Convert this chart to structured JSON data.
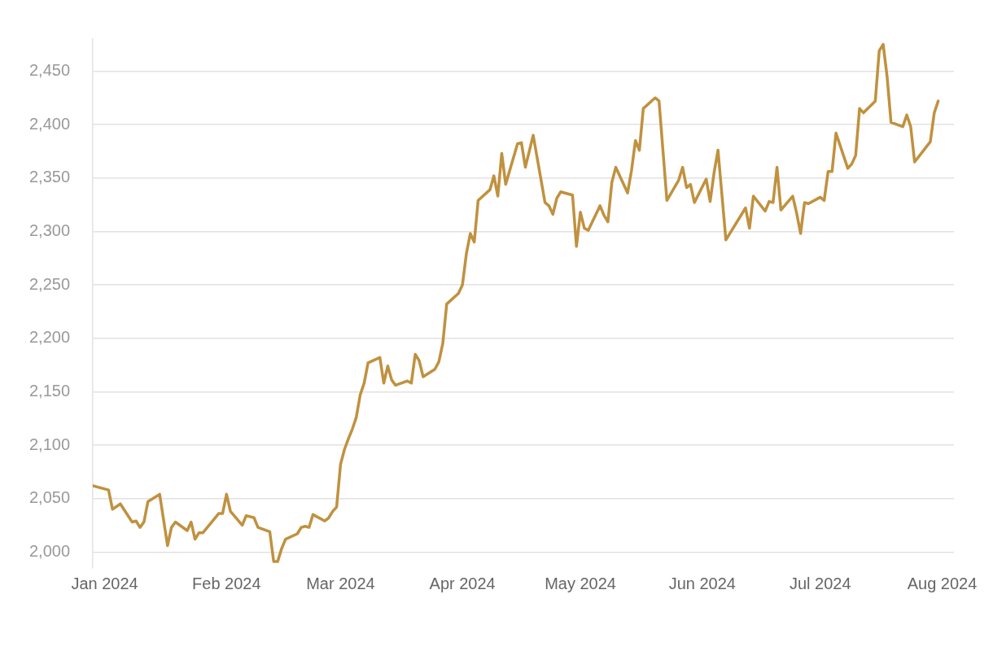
{
  "chart_data": {
    "type": "line",
    "x": [
      "2023-12-29",
      "2024-01-02",
      "2024-01-03",
      "2024-01-05",
      "2024-01-08",
      "2024-01-09",
      "2024-01-10",
      "2024-01-11",
      "2024-01-12",
      "2024-01-15",
      "2024-01-17",
      "2024-01-18",
      "2024-01-19",
      "2024-01-22",
      "2024-01-23",
      "2024-01-24",
      "2024-01-25",
      "2024-01-26",
      "2024-01-30",
      "2024-01-31",
      "2024-02-01",
      "2024-02-02",
      "2024-02-05",
      "2024-02-06",
      "2024-02-08",
      "2024-02-09",
      "2024-02-12",
      "2024-02-13",
      "2024-02-14",
      "2024-02-15",
      "2024-02-16",
      "2024-02-19",
      "2024-02-20",
      "2024-02-21",
      "2024-02-22",
      "2024-02-23",
      "2024-02-26",
      "2024-02-27",
      "2024-02-28",
      "2024-02-29",
      "2024-03-01",
      "2024-03-02",
      "2024-03-03",
      "2024-03-04",
      "2024-03-05",
      "2024-03-06",
      "2024-03-07",
      "2024-03-08",
      "2024-03-11",
      "2024-03-12",
      "2024-03-13",
      "2024-03-14",
      "2024-03-15",
      "2024-03-18",
      "2024-03-19",
      "2024-03-20",
      "2024-03-21",
      "2024-03-22",
      "2024-03-25",
      "2024-03-26",
      "2024-03-27",
      "2024-03-28",
      "2024-03-31",
      "2024-04-01",
      "2024-04-02",
      "2024-04-03",
      "2024-04-04",
      "2024-04-05",
      "2024-04-08",
      "2024-04-09",
      "2024-04-10",
      "2024-04-11",
      "2024-04-12",
      "2024-04-15",
      "2024-04-16",
      "2024-04-17",
      "2024-04-19",
      "2024-04-22",
      "2024-04-23",
      "2024-04-24",
      "2024-04-25",
      "2024-04-26",
      "2024-04-29",
      "2024-04-30",
      "2024-05-01",
      "2024-05-02",
      "2024-05-03",
      "2024-05-06",
      "2024-05-07",
      "2024-05-08",
      "2024-05-09",
      "2024-05-10",
      "2024-05-13",
      "2024-05-14",
      "2024-05-15",
      "2024-05-16",
      "2024-05-17",
      "2024-05-20",
      "2024-05-21",
      "2024-05-23",
      "2024-05-26",
      "2024-05-27",
      "2024-05-28",
      "2024-05-29",
      "2024-05-30",
      "2024-06-02",
      "2024-06-03",
      "2024-06-04",
      "2024-06-05",
      "2024-06-07",
      "2024-06-12",
      "2024-06-13",
      "2024-06-14",
      "2024-06-17",
      "2024-06-18",
      "2024-06-19",
      "2024-06-20",
      "2024-06-21",
      "2024-06-24",
      "2024-06-25",
      "2024-06-26",
      "2024-06-27",
      "2024-06-28",
      "2024-07-01",
      "2024-07-02",
      "2024-07-03",
      "2024-07-04",
      "2024-07-05",
      "2024-07-08",
      "2024-07-09",
      "2024-07-10",
      "2024-07-11",
      "2024-07-12",
      "2024-07-15",
      "2024-07-16",
      "2024-07-17",
      "2024-07-18",
      "2024-07-19",
      "2024-07-22",
      "2024-07-23",
      "2024-07-24",
      "2024-07-25",
      "2024-07-29",
      "2024-07-30",
      "2024-07-31"
    ],
    "series": [
      {
        "color": "#c0913f",
        "values": [
          2062,
          2058,
          2040,
          2045,
          2028,
          2029,
          2023,
          2028,
          2047,
          2054,
          2006,
          2023,
          2028,
          2020,
          2028,
          2012,
          2018,
          2018,
          2036,
          2036,
          2054,
          2038,
          2025,
          2034,
          2032,
          2023,
          2019,
          1991,
          1991,
          2003,
          2012,
          2017,
          2023,
          2024,
          2023,
          2035,
          2029,
          2032,
          2038,
          2042,
          2082,
          2096,
          2106,
          2115,
          2126,
          2147,
          2158,
          2177,
          2182,
          2158,
          2174,
          2161,
          2156,
          2160,
          2158,
          2185,
          2179,
          2164,
          2171,
          2178,
          2195,
          2232,
          2242,
          2250,
          2279,
          2298,
          2290,
          2329,
          2339,
          2352,
          2333,
          2373,
          2344,
          2382,
          2383,
          2360,
          2390,
          2327,
          2324,
          2316,
          2331,
          2337,
          2334,
          2286,
          2318,
          2303,
          2301,
          2324,
          2315,
          2309,
          2346,
          2360,
          2336,
          2357,
          2385,
          2376,
          2415,
          2425,
          2422,
          2329,
          2348,
          2360,
          2341,
          2344,
          2327,
          2349,
          2328,
          2355,
          2376,
          2292,
          2322,
          2303,
          2333,
          2319,
          2328,
          2327,
          2360,
          2320,
          2333,
          2317,
          2298,
          2327,
          2326,
          2332,
          2329,
          2356,
          2356,
          2392,
          2359,
          2363,
          2371,
          2415,
          2411,
          2422,
          2469,
          2475,
          2445,
          2402,
          2398,
          2409,
          2398,
          2365,
          2384,
          2411,
          2422
        ]
      }
    ],
    "xlim": [
      "2023-12-29",
      "2024-08-04"
    ],
    "xticks": [
      {
        "value": "2024-01-01",
        "label": "Jan 2024"
      },
      {
        "value": "2024-02-01",
        "label": "Feb 2024"
      },
      {
        "value": "2024-03-01",
        "label": "Mar 2024"
      },
      {
        "value": "2024-04-01",
        "label": "Apr 2024"
      },
      {
        "value": "2024-05-01",
        "label": "May 2024"
      },
      {
        "value": "2024-06-01",
        "label": "Jun 2024"
      },
      {
        "value": "2024-07-01",
        "label": "Jul 2024"
      },
      {
        "value": "2024-08-01",
        "label": "Aug 2024"
      }
    ],
    "ylim": [
      1985,
      2480
    ],
    "yticks": [
      {
        "value": 2000,
        "label": "2,000"
      },
      {
        "value": 2050,
        "label": "2,050"
      },
      {
        "value": 2100,
        "label": "2,100"
      },
      {
        "value": 2150,
        "label": "2,150"
      },
      {
        "value": 2200,
        "label": "2,200"
      },
      {
        "value": 2250,
        "label": "2,250"
      },
      {
        "value": 2300,
        "label": "2,300"
      },
      {
        "value": 2350,
        "label": "2,350"
      },
      {
        "value": 2400,
        "label": "2,400"
      },
      {
        "value": 2450,
        "label": "2,450"
      }
    ],
    "grid": "y",
    "legend": false,
    "marker": "none",
    "line_style": "solid"
  }
}
